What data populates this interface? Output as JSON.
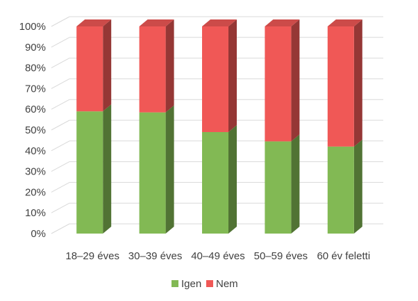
{
  "chart_data": {
    "type": "bar",
    "stacked": true,
    "percent": true,
    "three_d": true,
    "categories": [
      "18–29 éves",
      "30–39 éves",
      "40–49 éves",
      "50–59 éves",
      "60 év feletti"
    ],
    "series": [
      {
        "name": "Igen",
        "values": [
          59,
          58.5,
          49,
          44.5,
          42
        ],
        "color": "#82B954"
      },
      {
        "name": "Nem",
        "values": [
          41,
          41.5,
          51,
          55.5,
          58
        ],
        "color": "#F05856"
      }
    ],
    "y_ticks": [
      "0%",
      "10%",
      "20%",
      "30%",
      "40%",
      "50%",
      "60%",
      "70%",
      "80%",
      "90%",
      "100%"
    ],
    "ylim": [
      0,
      100
    ],
    "grid": true,
    "legend_position": "bottom"
  }
}
